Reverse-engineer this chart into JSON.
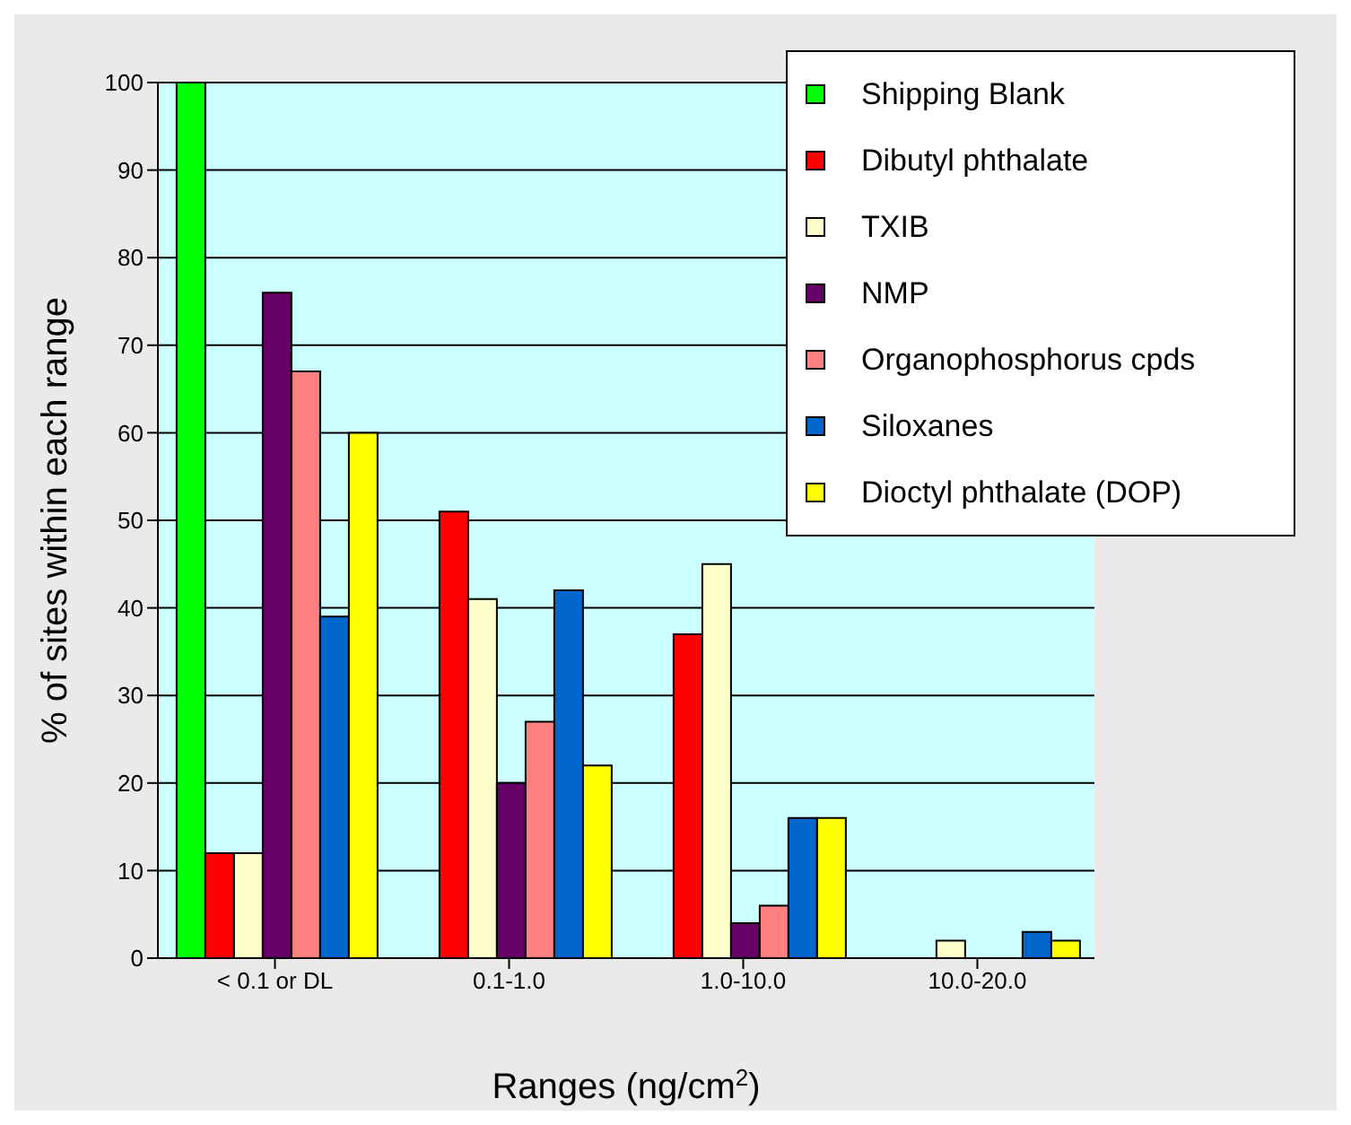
{
  "chart_data": {
    "type": "bar",
    "xlabel": "Ranges (ng/cm$^{2}$)",
    "ylabel": "% of sites within each range",
    "categories": [
      "< 0.1 or DL",
      "0.1-1.0",
      "1.0-10.0",
      "10.0-20.0"
    ],
    "series": [
      {
        "name": "Shipping Blank",
        "color": "#00ff00",
        "values": [
          100,
          0,
          0,
          0
        ]
      },
      {
        "name": "Dibutyl phthalate",
        "color": "#ff0000",
        "values": [
          12,
          51,
          37,
          0
        ]
      },
      {
        "name": "TXIB",
        "color": "#ffffcc",
        "values": [
          12,
          41,
          45,
          2
        ]
      },
      {
        "name": "NMP",
        "color": "#660066",
        "values": [
          76,
          20,
          4,
          0
        ]
      },
      {
        "name": "Organophosphorus cpds",
        "color": "#ff8080",
        "values": [
          67,
          27,
          6,
          0
        ]
      },
      {
        "name": "Siloxanes",
        "color": "#0066cc",
        "values": [
          39,
          42,
          16,
          3
        ]
      },
      {
        "name": "Dioctyl phthalate (DOP)",
        "color": "#ffff00",
        "values": [
          60,
          22,
          16,
          2
        ]
      }
    ],
    "ylim": [
      0,
      100
    ],
    "yticks": [
      0,
      10,
      20,
      30,
      40,
      50,
      60,
      70,
      80,
      90,
      100
    ],
    "grid": "y",
    "legend": "top right"
  }
}
